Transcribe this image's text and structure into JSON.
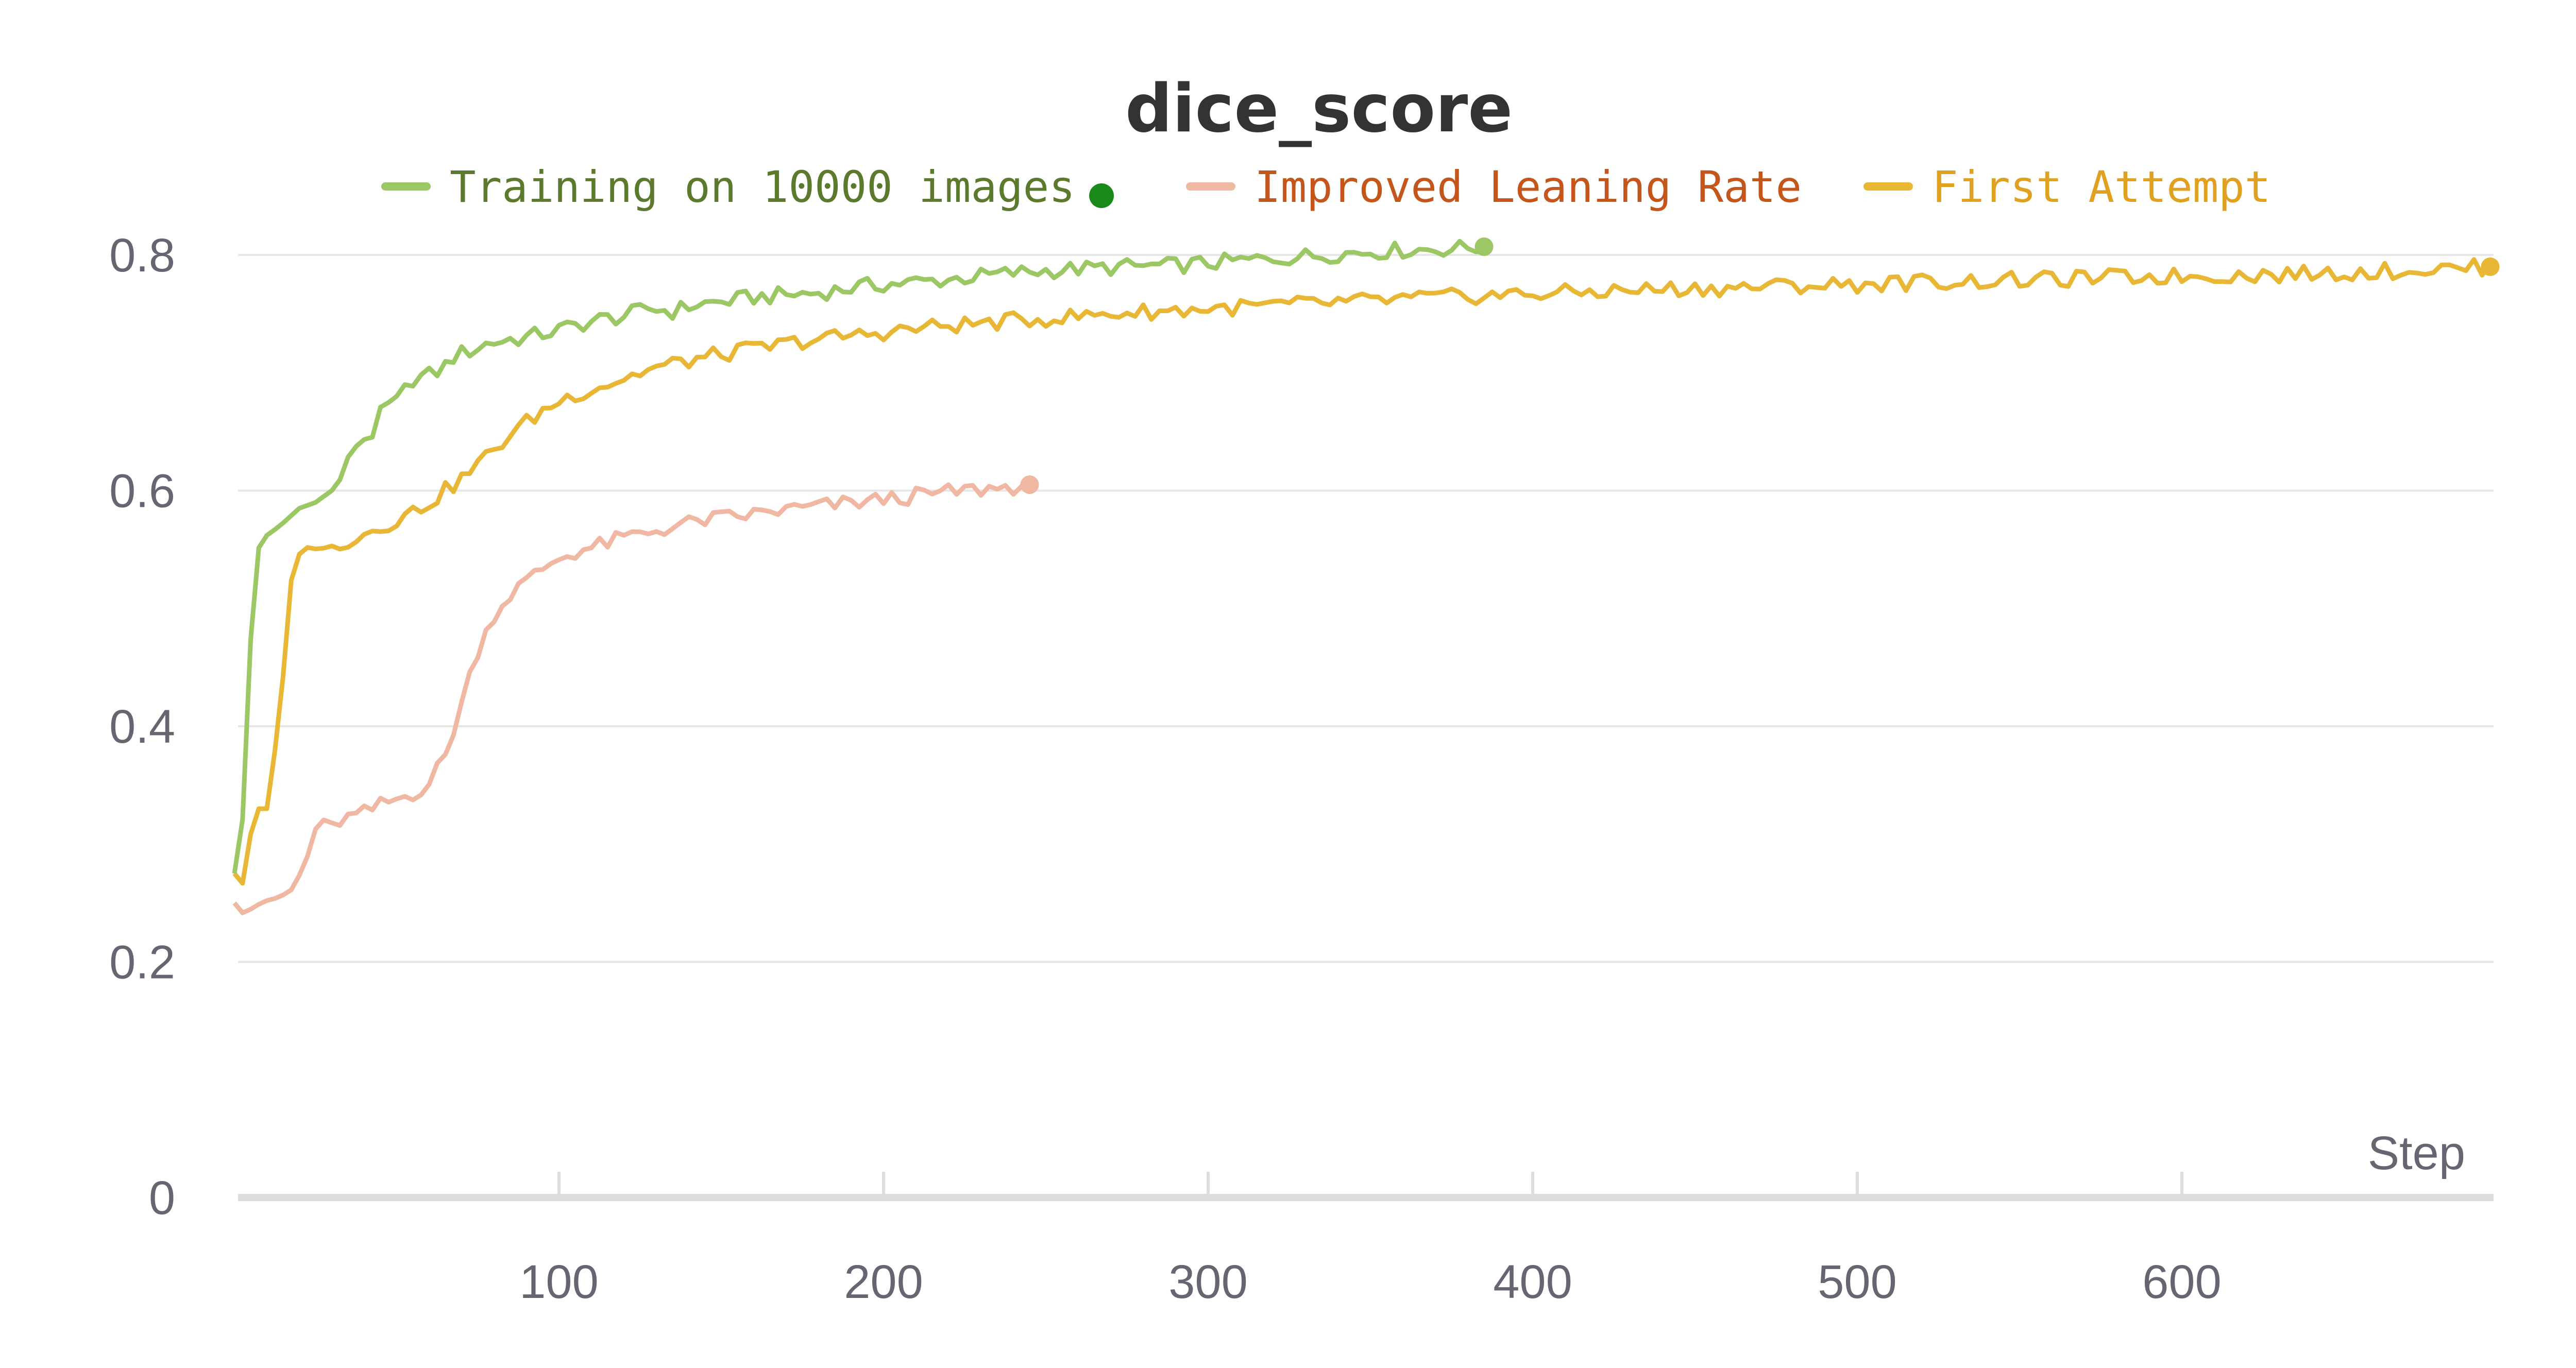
{
  "chart_data": {
    "type": "line",
    "title": "dice_score",
    "xlabel": "Step",
    "ylabel": "",
    "xlim": [
      0,
      700
    ],
    "ylim": [
      0,
      0.8
    ],
    "x_ticks": [
      "100",
      "200",
      "300",
      "400",
      "500",
      "600"
    ],
    "x_tick_values": [
      100,
      200,
      300,
      400,
      500,
      600
    ],
    "y_ticks": [
      "0",
      "0.2",
      "0.4",
      "0.6",
      "0.8"
    ],
    "y_tick_values": [
      0,
      0.2,
      0.4,
      0.6,
      0.8
    ],
    "grid": true,
    "legend_position": "top",
    "series": [
      {
        "name": "Training on 10000 images",
        "color": "#9bc765",
        "marker_color": "#1a8a1a",
        "x": [
          0,
          3,
          6,
          10,
          14,
          20,
          25,
          30,
          34,
          38,
          42,
          46,
          50,
          55,
          60,
          64,
          68,
          72,
          78,
          84,
          90,
          98,
          105,
          112,
          120,
          128,
          135,
          142,
          150,
          160,
          170,
          180,
          190,
          200,
          215,
          230,
          245,
          260,
          275,
          290,
          300,
          310,
          320,
          330,
          340,
          350,
          360,
          370,
          380,
          385
        ],
        "y": [
          0.275,
          0.33,
          0.545,
          0.562,
          0.57,
          0.585,
          0.59,
          0.6,
          0.617,
          0.643,
          0.646,
          0.67,
          0.675,
          0.695,
          0.698,
          0.703,
          0.715,
          0.718,
          0.725,
          0.728,
          0.73,
          0.735,
          0.74,
          0.745,
          0.748,
          0.755,
          0.752,
          0.758,
          0.76,
          0.764,
          0.766,
          0.768,
          0.772,
          0.775,
          0.778,
          0.782,
          0.786,
          0.788,
          0.79,
          0.791,
          0.793,
          0.795,
          0.797,
          0.799,
          0.801,
          0.803,
          0.804,
          0.805,
          0.806,
          0.807
        ]
      },
      {
        "name": "Improved Leaning Rate",
        "color": "#f0b8a2",
        "marker_color": "#f0b8a2",
        "x": [
          0,
          3,
          6,
          10,
          14,
          18,
          22,
          26,
          30,
          35,
          40,
          45,
          50,
          55,
          60,
          65,
          70,
          75,
          80,
          86,
          92,
          98,
          105,
          112,
          120,
          128,
          136,
          145,
          155,
          165,
          175,
          185,
          195,
          205,
          215,
          225,
          235,
          245
        ],
        "y": [
          0.25,
          0.24,
          0.247,
          0.252,
          0.255,
          0.262,
          0.285,
          0.322,
          0.318,
          0.322,
          0.326,
          0.333,
          0.338,
          0.343,
          0.352,
          0.375,
          0.42,
          0.465,
          0.495,
          0.515,
          0.527,
          0.54,
          0.548,
          0.553,
          0.56,
          0.565,
          0.57,
          0.575,
          0.578,
          0.582,
          0.585,
          0.588,
          0.591,
          0.594,
          0.597,
          0.6,
          0.602,
          0.605
        ]
      },
      {
        "name": "First Attempt",
        "color": "#e8b735",
        "marker_color": "#e8b735",
        "x": [
          0,
          3,
          6,
          10,
          14,
          18,
          22,
          26,
          30,
          35,
          40,
          45,
          50,
          55,
          60,
          65,
          70,
          75,
          80,
          86,
          92,
          98,
          105,
          112,
          120,
          128,
          136,
          145,
          155,
          165,
          175,
          185,
          195,
          205,
          215,
          230,
          245,
          260,
          275,
          290,
          305,
          320,
          335,
          350,
          365,
          380,
          400,
          420,
          440,
          460,
          480,
          500,
          520,
          540,
          560,
          580,
          600,
          620,
          640,
          660,
          680,
          695
        ],
        "y": [
          0.275,
          0.265,
          0.33,
          0.33,
          0.41,
          0.54,
          0.552,
          0.55,
          0.553,
          0.558,
          0.563,
          0.57,
          0.575,
          0.582,
          0.59,
          0.6,
          0.61,
          0.622,
          0.635,
          0.65,
          0.662,
          0.673,
          0.682,
          0.688,
          0.695,
          0.703,
          0.708,
          0.713,
          0.718,
          0.722,
          0.727,
          0.73,
          0.733,
          0.736,
          0.739,
          0.742,
          0.745,
          0.748,
          0.751,
          0.753,
          0.755,
          0.757,
          0.759,
          0.761,
          0.763,
          0.765,
          0.767,
          0.769,
          0.771,
          0.772,
          0.774,
          0.775,
          0.777,
          0.778,
          0.779,
          0.781,
          0.782,
          0.783,
          0.784,
          0.786,
          0.788,
          0.79
        ]
      }
    ]
  }
}
